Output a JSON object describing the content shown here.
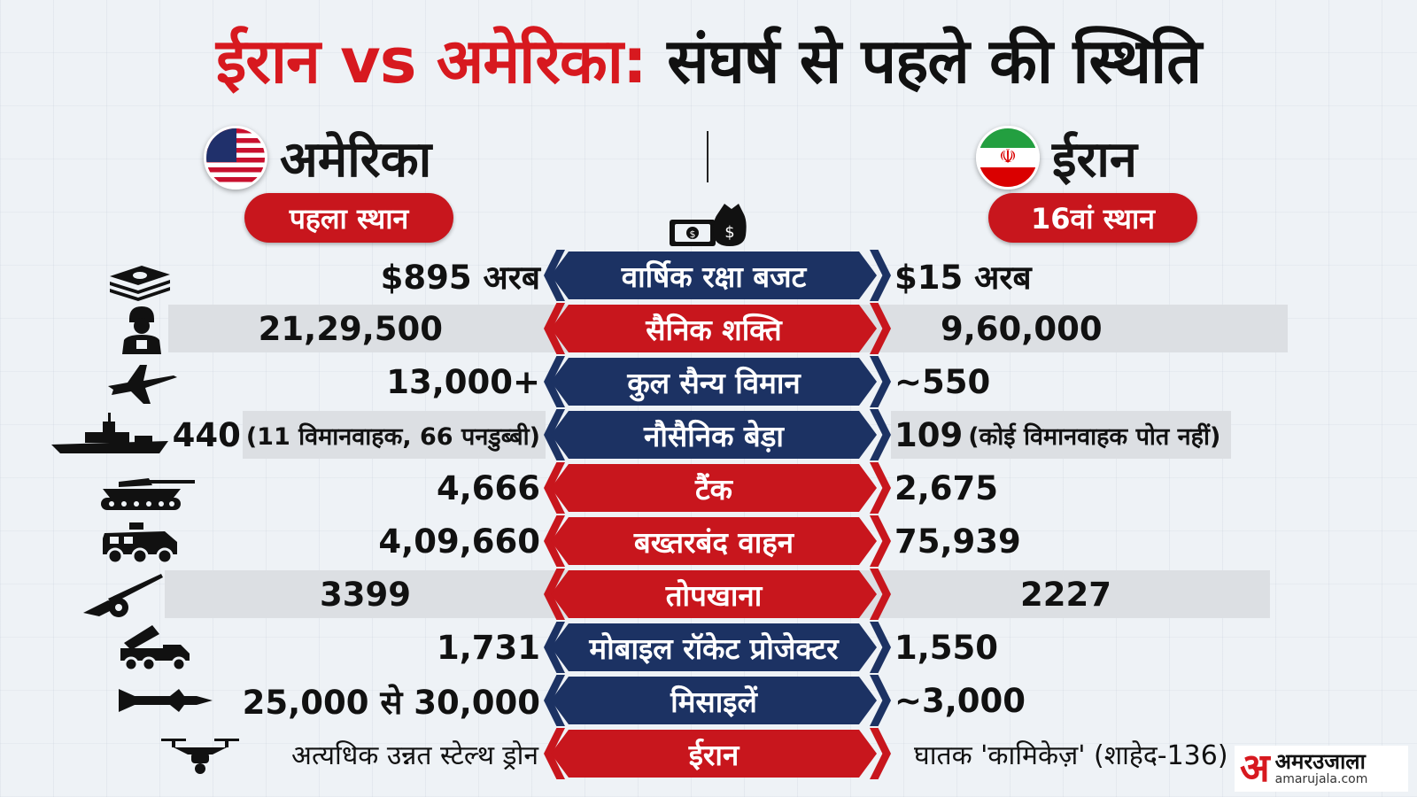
{
  "title": {
    "part1": "ईरान vs अमेरिका:",
    "part2": " संघर्ष से पहले की स्थिति"
  },
  "usa": {
    "name": "अमेरिका",
    "rank": "पहला स्थान"
  },
  "iran": {
    "name": "ईरान",
    "rank": "16वां स्थान"
  },
  "rows": [
    {
      "label": "वार्षिक रक्षा बजट",
      "color": "blue",
      "usa": "$895 अरब",
      "iran": "$15 अरब",
      "icon": "cash-stack-icon"
    },
    {
      "label": "सैनिक शक्ति",
      "color": "red",
      "usa": "21,29,500",
      "iran": "9,60,000",
      "icon": "soldier-icon"
    },
    {
      "label": "कुल सैन्य विमान",
      "color": "blue",
      "usa": "13,000+",
      "iran": "~550",
      "icon": "fighter-jet-icon"
    },
    {
      "label": "नौसैनिक बेड़ा",
      "color": "blue",
      "usa": "440",
      "usa_note": "(11 विमानवाहक, 66 पनडुब्बी)",
      "iran": "109",
      "iran_note": "(कोई विमानवाहक पोत नहीं)",
      "icon": "warship-icon"
    },
    {
      "label": "टैंक",
      "color": "red",
      "usa": "4,666",
      "iran": "2,675",
      "icon": "tank-icon"
    },
    {
      "label": "बख्तरबंद वाहन",
      "color": "red",
      "usa": "4,09,660",
      "iran": "75,939",
      "icon": "armored-vehicle-icon"
    },
    {
      "label": "तोपखाना",
      "color": "red",
      "usa": "3399",
      "iran": "2227",
      "icon": "artillery-icon"
    },
    {
      "label": "मोबाइल रॉकेट प्रोजेक्टर",
      "color": "blue",
      "usa": "1,731",
      "iran": "1,550",
      "icon": "rocket-launcher-icon"
    },
    {
      "label": "मिसाइलें",
      "color": "blue",
      "usa": "25,000 से 30,000",
      "iran": "~3,000",
      "icon": "missile-icon"
    },
    {
      "label": "ईरान",
      "color": "red",
      "usa": "अत्यधिक उन्नत स्टेल्थ ड्रोन",
      "iran": "घातक 'कामिकेज़' (शाहेद-136)",
      "icon": "drone-icon"
    }
  ],
  "logo": {
    "mark": "अ",
    "brand": "अमरउजाला",
    "domain": "amarujala.com"
  },
  "colors": {
    "red": "#c8161d",
    "blue": "#1c3263",
    "title_red": "#d7191f"
  }
}
